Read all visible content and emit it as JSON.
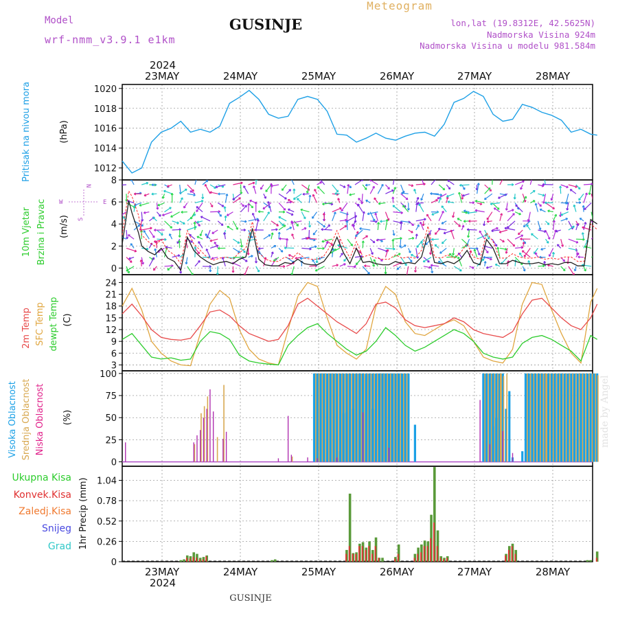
{
  "header": {
    "model_label": "Model",
    "model_name": "wrf-nmm_v3.9.1  e1km",
    "station": "GUSINJE",
    "product": "Meteogram",
    "lonlat": "lon,lat (19.8312E, 42.5625N)",
    "altitude": "Nadmorska Visina 924m",
    "model_altitude": "Nadmorska Visina u modelu 981.584m",
    "year": "2024",
    "footer_station": "GUSINJE",
    "watermark": "made by Angel"
  },
  "days": [
    "23MAY",
    "24MAY",
    "25MAY",
    "26MAY",
    "27MAY",
    "28MAY"
  ],
  "colors": {
    "pressure": "#1ea0e6",
    "wind_speed": "#222222",
    "gust": "#ff2a2a",
    "temp_2m": "#e84a4a",
    "temp_sfc": "#e0a640",
    "dewpoint": "#2ccc2c",
    "cloud_high": "#1aa0e6",
    "cloud_mid": "#d8a850",
    "cloud_low": "#b030b0",
    "precip_total": "#5a9a3a",
    "precip_conv": "#e03030"
  },
  "chart_data": [
    {
      "type": "line",
      "name": "pressure",
      "ylabel_main": "Pritisak na nivou mora",
      "ylabel_unit": "(hPa)",
      "yticks": [
        1012,
        1014,
        1016,
        1018,
        1020
      ],
      "ylim": [
        1010.8,
        1020.4
      ],
      "grid": true,
      "x_hours": [
        0,
        3,
        6,
        9,
        12,
        15,
        18,
        21,
        24,
        27,
        30,
        33,
        36,
        39,
        42,
        45,
        48,
        51,
        54,
        57,
        60,
        63,
        66,
        69,
        72,
        75,
        78,
        81,
        84,
        87,
        90,
        93,
        96,
        99,
        102,
        105,
        108,
        111,
        114,
        117,
        120,
        123,
        126,
        129,
        132,
        135,
        138,
        141,
        144,
        146
      ],
      "series": [
        {
          "values": [
            1012.7,
            1011.5,
            1012.0,
            1014.6,
            1015.6,
            1016.0,
            1016.7,
            1015.6,
            1015.9,
            1015.6,
            1016.2,
            1018.5,
            1019.1,
            1019.8,
            1018.9,
            1017.4,
            1017.0,
            1017.2,
            1018.9,
            1019.2,
            1018.9,
            1017.7,
            1015.4,
            1015.3,
            1014.6,
            1015.0,
            1015.5,
            1015.0,
            1014.8,
            1015.2,
            1015.5,
            1015.6,
            1015.2,
            1016.4,
            1018.6,
            1019.0,
            1019.7,
            1019.2,
            1017.4,
            1016.7,
            1016.9,
            1018.4,
            1018.1,
            1017.6,
            1017.3,
            1016.8,
            1015.6,
            1015.9,
            1015.4,
            1015.3
          ]
        }
      ]
    },
    {
      "type": "line",
      "name": "wind",
      "ylabel_main": "10m Vjetar",
      "ylabel_sub": "Brzina i Pravac",
      "ylabel_unit": "(m/s)",
      "compass": {
        "n": "N",
        "w": "W",
        "e": "E",
        "s": "S"
      },
      "yticks": [
        0,
        2,
        4,
        6,
        8
      ],
      "ylim": [
        -0.6,
        8
      ],
      "grid": true,
      "x_hours": [
        0,
        2,
        3,
        5,
        6,
        8,
        10,
        12,
        14,
        16,
        18,
        20,
        22,
        24,
        26,
        28,
        30,
        32,
        34,
        36,
        38,
        40,
        42,
        44,
        46,
        48,
        50,
        52,
        54,
        56,
        58,
        60,
        62,
        64,
        66,
        68,
        70,
        72,
        74,
        76,
        78,
        80,
        82,
        84,
        86,
        88,
        90,
        92,
        94,
        96,
        98,
        100,
        102,
        104,
        106,
        108,
        110,
        112,
        114,
        116,
        118,
        120,
        122,
        124,
        126,
        128,
        130,
        132,
        134,
        136,
        138,
        140,
        142,
        144,
        146
      ],
      "series": [
        {
          "values": [
            2.2,
            6.1,
            5.0,
            3.2,
            2.0,
            1.5,
            1.2,
            1.8,
            0.9,
            0.6,
            -0.2,
            2.8,
            1.6,
            1.0,
            0.6,
            0.3,
            0.5,
            0.6,
            0.4,
            0.8,
            1.0,
            3.6,
            0.8,
            0.3,
            0.2,
            0.2,
            0.5,
            0.4,
            0.8,
            0.4,
            0.3,
            0.3,
            0.6,
            1.4,
            2.8,
            1.4,
            0.4,
            1.8,
            0.5,
            0.6,
            0.4,
            0.3,
            0.3,
            0.6,
            0.4,
            0.5,
            0.4,
            1.0,
            3.1,
            0.5,
            0.4,
            0.6,
            0.4,
            0.8,
            1.6,
            0.5,
            0.3,
            2.6,
            1.8,
            0.4,
            0.4,
            0.7,
            0.5,
            0.4,
            0.4,
            0.5,
            0.3,
            0.4,
            0.3,
            0.5,
            0.5,
            0.2,
            0.2,
            4.4,
            4.0
          ]
        },
        {
          "values": [
            3.0,
            7.0,
            6.5,
            4.8,
            3.0,
            2.4,
            2.0,
            2.6,
            1.6,
            1.2,
            0.4,
            3.4,
            2.2,
            1.6,
            1.0,
            0.7,
            0.9,
            1.0,
            0.8,
            1.4,
            1.8,
            4.2,
            1.4,
            0.8,
            0.6,
            0.6,
            1.0,
            0.8,
            1.4,
            0.9,
            0.8,
            0.8,
            1.1,
            2.0,
            3.4,
            2.0,
            0.9,
            2.4,
            1.0,
            1.2,
            0.9,
            0.8,
            0.8,
            1.2,
            0.9,
            1.0,
            0.9,
            1.6,
            3.8,
            1.0,
            0.9,
            1.2,
            0.9,
            1.4,
            2.2,
            1.0,
            0.8,
            3.2,
            2.4,
            0.9,
            0.9,
            1.3,
            1.0,
            0.9,
            0.9,
            1.0,
            0.8,
            0.9,
            0.8,
            1.0,
            1.0,
            0.6,
            0.6,
            4.0,
            3.5
          ]
        }
      ]
    },
    {
      "type": "line",
      "name": "temperature",
      "ylabel_2m": "2m Temp",
      "ylabel_sfc": "SFC Temp",
      "ylabel_dew": "dewpt Temp",
      "ylabel_unit": "(C)",
      "yticks": [
        3,
        6,
        9,
        12,
        15,
        18,
        21,
        24
      ],
      "ylim": [
        1.5,
        26
      ],
      "grid": true,
      "x_hours": [
        0,
        3,
        6,
        9,
        12,
        15,
        18,
        21,
        24,
        27,
        30,
        33,
        36,
        39,
        42,
        45,
        48,
        51,
        54,
        57,
        60,
        63,
        66,
        69,
        72,
        75,
        78,
        81,
        84,
        87,
        90,
        93,
        96,
        99,
        102,
        105,
        108,
        111,
        114,
        117,
        120,
        123,
        126,
        129,
        132,
        135,
        138,
        141,
        144,
        146
      ],
      "series": [
        {
          "values": [
            16.0,
            18.5,
            15.5,
            12.0,
            10.0,
            9.5,
            9.3,
            9.8,
            13.0,
            16.5,
            17.0,
            15.5,
            13.0,
            11.0,
            10.0,
            9.0,
            9.5,
            13.0,
            18.5,
            20.0,
            18.0,
            16.0,
            14.0,
            12.5,
            11.0,
            13.5,
            18.5,
            19.0,
            17.5,
            14.5,
            13.0,
            12.5,
            13.0,
            13.5,
            15.0,
            14.0,
            12.0,
            11.0,
            10.5,
            10.0,
            11.5,
            16.0,
            19.5,
            20.0,
            17.5,
            15.0,
            13.0,
            12.0,
            15.0,
            18.5
          ]
        },
        {
          "values": [
            18.0,
            22.5,
            17.0,
            9.0,
            6.0,
            4.0,
            3.0,
            2.8,
            11.0,
            18.5,
            22.0,
            20.0,
            12.0,
            7.0,
            4.5,
            3.5,
            3.0,
            12.0,
            20.5,
            24.0,
            23.0,
            15.0,
            8.0,
            6.0,
            4.5,
            7.0,
            18.0,
            23.0,
            21.0,
            14.0,
            11.0,
            10.5,
            12.0,
            13.5,
            14.5,
            13.0,
            9.0,
            5.0,
            4.0,
            3.5,
            7.0,
            18.5,
            24.0,
            23.5,
            17.0,
            11.0,
            6.0,
            3.5,
            19.0,
            22.5
          ]
        },
        {
          "values": [
            9.5,
            11.0,
            8.0,
            5.0,
            4.5,
            4.8,
            4.2,
            4.5,
            9.0,
            11.5,
            11.0,
            9.5,
            5.5,
            4.0,
            3.5,
            3.2,
            3.0,
            8.0,
            10.5,
            12.5,
            13.5,
            11.0,
            9.0,
            7.0,
            5.5,
            6.5,
            9.0,
            12.5,
            10.5,
            8.0,
            6.5,
            7.5,
            9.0,
            10.5,
            12.0,
            11.0,
            9.0,
            6.0,
            5.0,
            4.5,
            5.0,
            8.5,
            10.0,
            10.5,
            9.5,
            8.0,
            6.5,
            4.0,
            10.5,
            9.5
          ]
        }
      ]
    },
    {
      "type": "bar",
      "name": "cloud_cover",
      "ylabel_high": "Visoka Oblacnost",
      "ylabel_mid": "Srednja Oblacnost",
      "ylabel_low": "Niska Oblacnost",
      "ylabel_unit": "(%)",
      "yticks": [
        0,
        25,
        50,
        75,
        100
      ],
      "ylim": [
        -5,
        103
      ],
      "grid": true,
      "low_bars": [
        [
          1,
          22
        ],
        [
          22,
          22
        ],
        [
          23,
          30
        ],
        [
          24,
          36
        ],
        [
          25,
          50
        ],
        [
          26,
          60
        ],
        [
          27,
          82
        ],
        [
          28,
          57
        ],
        [
          31,
          26
        ],
        [
          32,
          34
        ],
        [
          51,
          52
        ],
        [
          48,
          4
        ],
        [
          52,
          8
        ],
        [
          57,
          5
        ],
        [
          60,
          4
        ],
        [
          66,
          5
        ],
        [
          74,
          56
        ],
        [
          82,
          16
        ],
        [
          110,
          70
        ],
        [
          113,
          20
        ],
        [
          117,
          35
        ],
        [
          120,
          10
        ]
      ],
      "mid_bars": [
        [
          22,
          20
        ],
        [
          24,
          55
        ],
        [
          25,
          63
        ],
        [
          26,
          74
        ],
        [
          29,
          28
        ],
        [
          31,
          87
        ],
        [
          52,
          6
        ],
        [
          116,
          100
        ],
        [
          117,
          97
        ],
        [
          118,
          100
        ],
        [
          130,
          100
        ],
        [
          146,
          98
        ]
      ],
      "high_series": {
        "ranges": [
          [
            58.5,
            88
          ],
          [
            111,
            117
          ],
          [
            124,
            146
          ]
        ],
        "gaps": [
          [
            66,
            4
          ],
          [
            67,
            12
          ],
          [
            68,
            55
          ],
          [
            69,
            56
          ],
          [
            71,
            60
          ],
          [
            73,
            100
          ],
          [
            75,
            98
          ],
          [
            77,
            60
          ],
          [
            79,
            100
          ],
          [
            80,
            100
          ],
          [
            81,
            100
          ],
          [
            83,
            100
          ],
          [
            85,
            100
          ],
          [
            114,
            40
          ],
          [
            115,
            50
          ],
          [
            116,
            55
          ],
          [
            118,
            60
          ],
          [
            119,
            80
          ],
          [
            120,
            5
          ],
          [
            123,
            12
          ]
        ],
        "extra": [
          [
            60,
            100
          ],
          [
            61,
            100
          ],
          [
            62,
            100
          ],
          [
            64,
            100
          ],
          [
            90,
            42
          ]
        ]
      }
    },
    {
      "type": "bar",
      "name": "precipitation",
      "legend": {
        "total": "Ukupna  Kisa",
        "conv": "Konvek.Kisa",
        "frozen": "Zaledj.Kisa",
        "snow": "Snijeg",
        "hail": "Grad"
      },
      "ylabel_unit": "1hr Precip (mm)",
      "yticks": [
        0,
        0.26,
        0.52,
        0.78,
        1.04
      ],
      "ylim": [
        0,
        1.22
      ],
      "grid": true,
      "bars": [
        [
          18,
          0.02,
          0.0
        ],
        [
          19,
          0.03,
          0.0
        ],
        [
          20,
          0.08,
          0.05
        ],
        [
          21,
          0.07,
          0.04
        ],
        [
          22,
          0.12,
          0.06
        ],
        [
          23,
          0.1,
          0.05
        ],
        [
          24,
          0.05,
          0.03
        ],
        [
          25,
          0.06,
          0.03
        ],
        [
          26,
          0.08,
          0.07
        ],
        [
          46,
          0.02,
          0.0
        ],
        [
          47,
          0.03,
          0.0
        ],
        [
          69,
          0.15,
          0.1
        ],
        [
          70,
          0.87,
          0.2
        ],
        [
          71,
          0.11,
          0.1
        ],
        [
          72,
          0.12,
          0.1
        ],
        [
          73,
          0.23,
          0.2
        ],
        [
          74,
          0.25,
          0.2
        ],
        [
          75,
          0.18,
          0.15
        ],
        [
          76,
          0.26,
          0.2
        ],
        [
          77,
          0.15,
          0.1
        ],
        [
          78,
          0.31,
          0.2
        ],
        [
          79,
          0.05,
          0.05
        ],
        [
          80,
          0.05,
          0.0
        ],
        [
          84,
          0.06,
          0.04
        ],
        [
          85,
          0.22,
          0.1
        ],
        [
          90,
          0.1,
          0.05
        ],
        [
          91,
          0.18,
          0.1
        ],
        [
          92,
          0.22,
          0.12
        ],
        [
          93,
          0.27,
          0.2
        ],
        [
          94,
          0.26,
          0.2
        ],
        [
          95,
          0.6,
          0.3
        ],
        [
          96,
          1.21,
          0.5
        ],
        [
          97,
          0.4,
          0.2
        ],
        [
          98,
          0.07,
          0.05
        ],
        [
          99,
          0.05,
          0.03
        ],
        [
          100,
          0.07,
          0.05
        ],
        [
          118,
          0.1,
          0.08
        ],
        [
          119,
          0.2,
          0.15
        ],
        [
          120,
          0.23,
          0.2
        ],
        [
          121,
          0.15,
          0.1
        ],
        [
          143,
          0.02,
          0.0
        ],
        [
          144,
          0.02,
          0.0
        ],
        [
          146,
          0.13,
          0.05
        ]
      ]
    }
  ]
}
